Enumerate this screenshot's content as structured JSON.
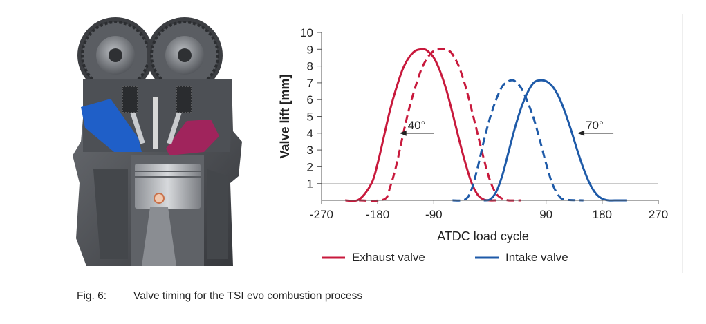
{
  "caption": {
    "number": "Fig. 6:",
    "text": "Valve timing for the TSI evo combustion process"
  },
  "figure_image": {
    "icon": "engine-cutaway-illustration",
    "colors": {
      "intake_port": "#1f5fc8",
      "exhaust_port": "#a0245c",
      "metal": "#4a4d52"
    }
  },
  "chart_data": {
    "type": "line",
    "xlabel": "ATDC load cycle",
    "ylabel": "Valve lift [mm]",
    "xlim": [
      -270,
      270
    ],
    "ylim": [
      0,
      10
    ],
    "xticks": [
      "-270",
      "-180",
      "-90",
      "0",
      "90",
      "180",
      "270"
    ],
    "yticks": [
      "1",
      "2",
      "3",
      "4",
      "5",
      "6",
      "7",
      "8",
      "9",
      "10"
    ],
    "reference_lines": {
      "x": 0,
      "y": 1
    },
    "legend": {
      "placement": "bottom",
      "entries": [
        {
          "label": "Exhaust valve",
          "color": "#c8193c"
        },
        {
          "label": "Intake valve",
          "color": "#1e5aa8"
        }
      ]
    },
    "annotations": [
      {
        "text": "40°",
        "x": -145,
        "y": 4
      },
      {
        "text": "70°",
        "x": 45,
        "y": 4
      }
    ],
    "series": [
      {
        "name": "Exhaust valve",
        "style": "solid",
        "color": "#c8193c",
        "x": [
          -232,
          -210,
          -190,
          -180,
          -170,
          -160,
          -150,
          -140,
          -130,
          -120,
          -110,
          -105,
          -100,
          -90,
          -80,
          -70,
          -60,
          -50,
          -40,
          -30,
          -20,
          -10,
          0,
          10
        ],
        "y": [
          0,
          0.05,
          1.0,
          2.2,
          3.8,
          5.4,
          6.7,
          7.8,
          8.5,
          8.9,
          9.0,
          9.0,
          8.9,
          8.5,
          7.7,
          6.6,
          5.2,
          3.7,
          2.3,
          1.1,
          0.35,
          0.05,
          0,
          0
        ]
      },
      {
        "name": "Exhaust valve (shifted)",
        "style": "dashed",
        "color": "#c8193c",
        "x": [
          -210,
          -170,
          -160,
          -150,
          -140,
          -130,
          -120,
          -110,
          -100,
          -90,
          -80,
          -70,
          -65,
          -60,
          -50,
          -40,
          -30,
          -20,
          -10,
          0,
          10,
          20,
          30,
          50
        ],
        "y": [
          0,
          0.05,
          0.8,
          2.1,
          3.8,
          5.4,
          6.7,
          7.8,
          8.5,
          8.9,
          9.0,
          9.0,
          8.9,
          8.7,
          8.0,
          6.9,
          5.5,
          4.0,
          2.5,
          1.2,
          0.4,
          0.1,
          0,
          0
        ]
      },
      {
        "name": "Intake valve (shifted)",
        "style": "dashed",
        "color": "#1e5aa8",
        "x": [
          -60,
          -40,
          -30,
          -20,
          -10,
          0,
          10,
          20,
          30,
          35,
          40,
          50,
          60,
          70,
          80,
          90,
          100,
          110,
          120,
          150
        ],
        "y": [
          0,
          0.05,
          0.6,
          1.9,
          3.5,
          4.9,
          6.0,
          6.8,
          7.1,
          7.15,
          7.1,
          6.7,
          5.9,
          4.9,
          3.6,
          2.2,
          1.0,
          0.3,
          0.05,
          0
        ]
      },
      {
        "name": "Intake valve",
        "style": "solid",
        "color": "#1e5aa8",
        "x": [
          -10,
          0,
          10,
          20,
          30,
          40,
          50,
          60,
          70,
          80,
          90,
          100,
          110,
          120,
          130,
          140,
          150,
          160,
          170,
          180,
          190,
          200,
          220
        ],
        "y": [
          0,
          0.05,
          0.5,
          1.5,
          2.9,
          4.3,
          5.5,
          6.4,
          7.0,
          7.15,
          7.1,
          6.8,
          6.2,
          5.3,
          4.2,
          3.0,
          1.9,
          1.0,
          0.4,
          0.1,
          0,
          0,
          0
        ]
      }
    ]
  }
}
